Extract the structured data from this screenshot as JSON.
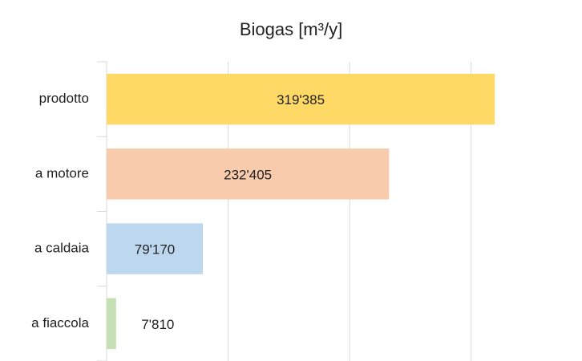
{
  "chart_data": {
    "type": "hbar",
    "title": "Biogas [m³/y]",
    "categories": [
      "prodotto",
      "a motore",
      "a caldaia",
      "a fiaccola"
    ],
    "values": [
      319385,
      232405,
      79170,
      7810
    ],
    "value_labels": [
      "319'385",
      "232'405",
      "79'170",
      "7'810"
    ],
    "colors": [
      "#ffd966",
      "#f8cbad",
      "#bdd7ee",
      "#c5e0b4"
    ],
    "xlim": [
      0,
      380000
    ],
    "xticks": [
      0,
      100000,
      200000,
      300000
    ],
    "grid": true,
    "show_tick_labels": false
  }
}
